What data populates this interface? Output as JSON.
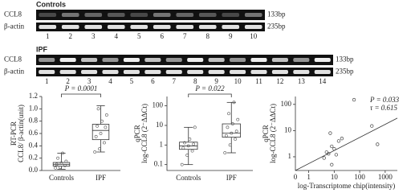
{
  "gels": [
    {
      "title": "Controls",
      "rows": [
        {
          "label": "CCL8",
          "size": "133bp"
        },
        {
          "label": "β-actin",
          "size": "235bp"
        }
      ],
      "lanes": [
        "1",
        "2",
        "3",
        "4",
        "5",
        "6",
        "7",
        "8",
        "9",
        "10"
      ]
    },
    {
      "title": "IPF",
      "rows": [
        {
          "label": "CCL8",
          "size": "133bp"
        },
        {
          "label": "β-actin",
          "size": "235bp"
        }
      ],
      "lanes": [
        "1",
        "2",
        "3",
        "4",
        "5",
        "6",
        "7",
        "8",
        "9",
        "10",
        "11",
        "12",
        "13",
        "14"
      ]
    }
  ],
  "chart_data": [
    {
      "type": "box",
      "ylabel": [
        "RT-PCR",
        "CCL8/ β-actin(unit)"
      ],
      "annotation": "P = 0.0001",
      "categories": [
        "Controls",
        "IPF"
      ],
      "boxes": [
        {
          "min": 0.02,
          "q1": 0.07,
          "median": 0.1,
          "q3": 0.13,
          "max": 0.28
        },
        {
          "min": 0.3,
          "q1": 0.5,
          "median": 0.65,
          "q3": 0.75,
          "max": 1.05
        }
      ],
      "points": [
        [
          0.04,
          0.05,
          0.08,
          0.1,
          0.12,
          0.15,
          0.2,
          0.28
        ],
        [
          0.3,
          0.35,
          0.45,
          0.55,
          0.6,
          0.7,
          0.72,
          0.8,
          0.9,
          1.0
        ]
      ],
      "ylim": [
        0,
        1.2
      ],
      "yticks": [
        {
          "value": 0,
          "label": "0.0"
        },
        0.2,
        0.4,
        0.6,
        0.8,
        {
          "value": 1,
          "label": "1.0"
        },
        1.2
      ]
    },
    {
      "type": "box",
      "log": true,
      "ylabel": [
        "qPCR",
        "log-CCL8 (2⁻ΔΔCt)"
      ],
      "annotation": "P = 0.022",
      "categories": [
        "Controls",
        "IPF"
      ],
      "boxes": [
        {
          "min": 0.1,
          "q1": 0.6,
          "median": 0.9,
          "q3": 1.4,
          "max": 8
        },
        {
          "min": 0.4,
          "q1": 2.5,
          "median": 4,
          "q3": 12,
          "max": 150
        }
      ],
      "points": [
        [
          0.1,
          0.3,
          0.5,
          0.7,
          0.9,
          1.1,
          1.3,
          2,
          8
        ],
        [
          0.4,
          1,
          2,
          3,
          4,
          5,
          8,
          12,
          20,
          40,
          150
        ]
      ],
      "ylim": [
        0.05,
        300
      ],
      "yticks": [
        0.1,
        1,
        10,
        100
      ]
    },
    {
      "type": "scatter",
      "log": true,
      "ylabel": [
        "qPCR",
        "log-CCL8 (2⁻ΔΔCt)"
      ],
      "xlabel": "log-Transcriptome chip(intensity)",
      "x_origin_label": "0",
      "annotations": [
        "P = 0.033",
        "τ = 0.615"
      ],
      "x": [
        4,
        5,
        6,
        7,
        8,
        8,
        10,
        12,
        15,
        20,
        60,
        300,
        500
      ],
      "y": [
        0.9,
        1.5,
        1.3,
        8,
        2.5,
        0.5,
        2,
        1.2,
        4,
        5,
        150,
        15,
        3
      ],
      "trend": {
        "x": [
          0.3,
          3000
        ],
        "y": [
          0.3,
          30
        ]
      },
      "xlim": [
        0.3,
        3000
      ],
      "xticks": [
        1,
        10,
        100,
        1000
      ],
      "ylim": [
        0.3,
        200
      ],
      "yticks": [
        1,
        10,
        100
      ]
    }
  ]
}
